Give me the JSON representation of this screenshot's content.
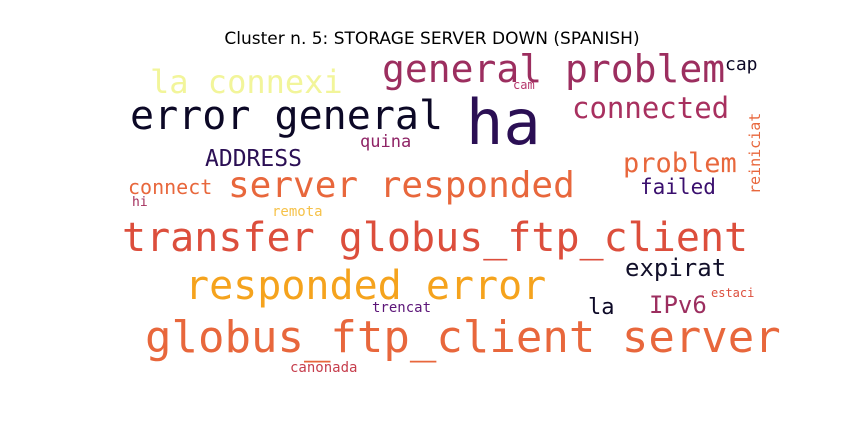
{
  "title": "Cluster n. 5: STORAGE SERVER DOWN (SPANISH)",
  "words": [
    {
      "text": "ha",
      "color": "#2b0f54"
    },
    {
      "text": "error general",
      "color": "#0c0826"
    },
    {
      "text": "general problem",
      "color": "#9c2e5f"
    },
    {
      "text": "la connexi",
      "color": "#f2f59a"
    },
    {
      "text": "connected",
      "color": "#a8305f"
    },
    {
      "text": "cap",
      "color": "#0c0826"
    },
    {
      "text": "cam",
      "color": "#b5376c"
    },
    {
      "text": "reiniciat",
      "color": "#e8673c"
    },
    {
      "text": "quina",
      "color": "#8f2466"
    },
    {
      "text": "ADDRESS",
      "color": "#2b0f54"
    },
    {
      "text": "problem",
      "color": "#e8673c"
    },
    {
      "text": "connect",
      "color": "#e8673c"
    },
    {
      "text": "server responded",
      "color": "#e8673c"
    },
    {
      "text": "failed",
      "color": "#3a0f6e"
    },
    {
      "text": "hi",
      "color": "#a32e5c"
    },
    {
      "text": "remota",
      "color": "#f6c24a"
    },
    {
      "text": "transfer globus_ftp_client",
      "color": "#dc4e3c"
    },
    {
      "text": "expirat",
      "color": "#12102a"
    },
    {
      "text": "responded error",
      "color": "#f5a31d"
    },
    {
      "text": "estaci",
      "color": "#dc4e3c"
    },
    {
      "text": "la",
      "color": "#0c0826"
    },
    {
      "text": "IPv6",
      "color": "#9c2e5f"
    },
    {
      "text": "trencat",
      "color": "#5c1578"
    },
    {
      "text": "globus_ftp_client server",
      "color": "#e8673c"
    },
    {
      "text": "canonada",
      "color": "#c63e4d"
    }
  ]
}
